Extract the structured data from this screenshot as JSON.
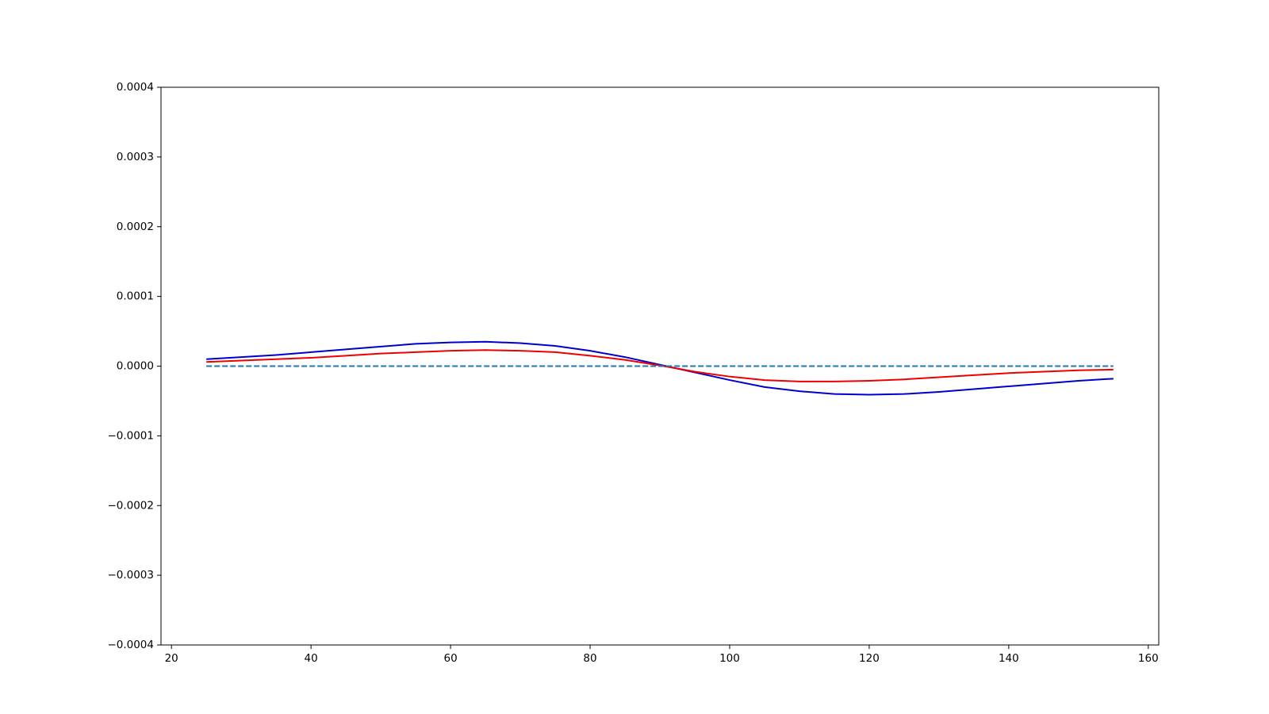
{
  "chart_data": {
    "type": "line",
    "x": [
      25,
      30,
      35,
      40,
      45,
      50,
      55,
      60,
      65,
      70,
      75,
      80,
      85,
      90,
      95,
      100,
      105,
      110,
      115,
      120,
      125,
      130,
      135,
      140,
      145,
      150,
      155
    ],
    "series": [
      {
        "color": "#0000cd",
        "linestyle": "solid",
        "values": [
          1e-05,
          1.3e-05,
          1.6e-05,
          2e-05,
          2.4e-05,
          2.8e-05,
          3.2e-05,
          3.4e-05,
          3.5e-05,
          3.3e-05,
          2.9e-05,
          2.2e-05,
          1.3e-05,
          2e-06,
          -9e-06,
          -2e-05,
          -3e-05,
          -3.6e-05,
          -4e-05,
          -4.1e-05,
          -4e-05,
          -3.7e-05,
          -3.3e-05,
          -2.9e-05,
          -2.5e-05,
          -2.1e-05,
          -1.8e-05
        ]
      },
      {
        "color": "#ee0000",
        "linestyle": "solid",
        "values": [
          6e-06,
          8e-06,
          1e-05,
          1.2e-05,
          1.5e-05,
          1.8e-05,
          2e-05,
          2.2e-05,
          2.3e-05,
          2.2e-05,
          2e-05,
          1.5e-05,
          9e-06,
          1e-06,
          -8e-06,
          -1.5e-05,
          -2e-05,
          -2.2e-05,
          -2.2e-05,
          -2.1e-05,
          -1.9e-05,
          -1.6e-05,
          -1.3e-05,
          -1e-05,
          -8e-06,
          -6e-06,
          -5e-06
        ]
      },
      {
        "color": "#1f77b4",
        "linestyle": "dashed",
        "values": [
          0,
          0,
          0,
          0,
          0,
          0,
          0,
          0,
          0,
          0,
          0,
          0,
          0,
          0,
          0,
          0,
          0,
          0,
          0,
          0,
          0,
          0,
          0,
          0,
          0,
          0,
          0
        ]
      }
    ],
    "xlim": [
      18.5,
      161.5
    ],
    "xticks": [
      20,
      40,
      60,
      80,
      100,
      120,
      140,
      160
    ],
    "ylim": [
      -0.0004,
      0.0004
    ],
    "yticks": [
      {
        "value": -0.0004,
        "label": "−0.0004"
      },
      {
        "value": -0.0003,
        "label": "−0.0003"
      },
      {
        "value": -0.0002,
        "label": "−0.0002"
      },
      {
        "value": -0.0001,
        "label": "−0.0001"
      },
      {
        "value": 0,
        "label": "0.0000"
      },
      0.0001,
      0.0002,
      0.0003,
      0.0004
    ],
    "grid": false
  }
}
